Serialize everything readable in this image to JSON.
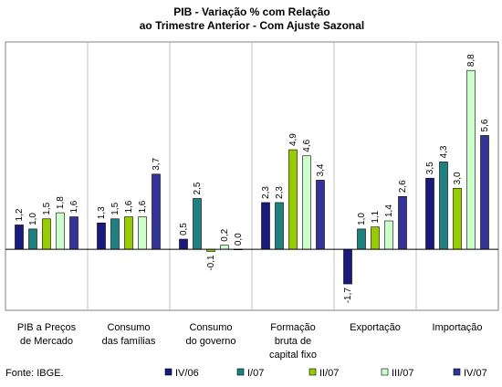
{
  "chart_data": {
    "type": "bar",
    "title_lines": [
      "PIB - Variação % com Relação",
      "ao Trimestre Anterior - Com Ajuste Sazonal"
    ],
    "categories": [
      [
        "PIB a Preços",
        "de Mercado"
      ],
      [
        "Consumo",
        "das famílias"
      ],
      [
        "Consumo",
        "do governo"
      ],
      [
        "Formação",
        "bruta de",
        "capital fixo"
      ],
      [
        "Exportação"
      ],
      [
        "Importação"
      ]
    ],
    "series": [
      {
        "name": "IV/06",
        "color": "#1a1a7e",
        "values": [
          1.2,
          1.3,
          0.5,
          2.3,
          -1.7,
          3.5
        ],
        "labels": [
          "1,2",
          "1,3",
          "0,5",
          "2,3",
          "-1,7",
          "3,5"
        ]
      },
      {
        "name": "I/07",
        "color": "#1f8080",
        "values": [
          1.0,
          1.5,
          2.5,
          2.3,
          1.0,
          4.3
        ],
        "labels": [
          "1,0",
          "1,5",
          "2,5",
          "2,3",
          "1,0",
          "4,3"
        ]
      },
      {
        "name": "II/07",
        "color": "#99cc00",
        "values": [
          1.5,
          1.6,
          -0.1,
          4.9,
          1.1,
          3.0
        ],
        "labels": [
          "1,5",
          "1,6",
          "-0,1",
          "4,9",
          "1,1",
          "3,0"
        ]
      },
      {
        "name": "III/07",
        "color": "#ccffcc",
        "values": [
          1.8,
          1.6,
          0.2,
          4.6,
          1.4,
          8.8
        ],
        "labels": [
          "1,8",
          "1,6",
          "0,2",
          "4,6",
          "1,4",
          "8,8"
        ]
      },
      {
        "name": "IV/07",
        "color": "#333399",
        "values": [
          1.6,
          3.7,
          0.0,
          3.4,
          2.6,
          5.6
        ],
        "labels": [
          "1,6",
          "3,7",
          "0,0",
          "3,4",
          "2,6",
          "5,6"
        ]
      }
    ],
    "ylim": [
      -3.0,
      10.2
    ],
    "grid": "vertical category separators",
    "legend": "bottom",
    "source": "Fonte: IBGE."
  }
}
